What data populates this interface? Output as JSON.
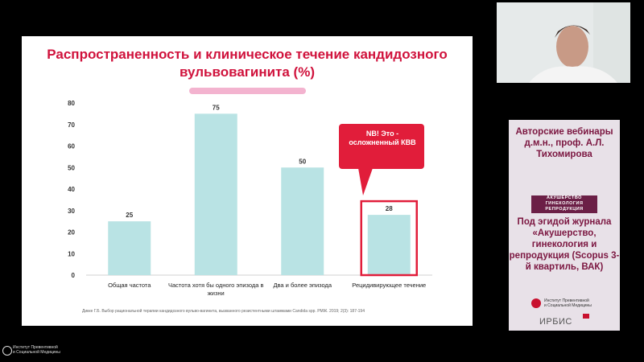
{
  "slide": {
    "title": "Распространенность и клиническое течение кандидозного вульвовагинита (%)",
    "source": "Дикке Г.Б. Выбор рациональной терапии кандидозного вульво-вагинита, вызванного резистентными штаммами Candida spp. РМЖ. 2019; 2(3): 187-194",
    "callout": "NB! Это - осложненный КВВ"
  },
  "chart_data": {
    "type": "bar",
    "categories": [
      "Общая частота",
      "Частота хотя бы одного эпизода в жизни",
      "Два и более эпизода",
      "Рецидивирующее течение"
    ],
    "values": [
      25,
      75,
      50,
      28
    ],
    "ylim": [
      0,
      80
    ],
    "yticks": [
      0,
      10,
      20,
      30,
      40,
      50,
      60,
      70,
      80
    ],
    "highlight_index": 3,
    "bar_color": "#b9e3e4",
    "highlight_color": "#e11d3a",
    "grid": false
  },
  "side_panel": {
    "header": "Авторские вебинары д.м.н., проф. А.Л. Тихомирова",
    "journal_logo": [
      "АКУШЕРСТВО",
      "ГИНЕКОЛОГИЯ",
      "РЕПРОДУКЦИЯ"
    ],
    "journal_text": "Под эгидой журнала «Акушерство, гинекология и репродукция (Scopus 3-й квартиль, ВАК)",
    "institute": [
      "Институт Превентивной",
      "и Социальной Медицины"
    ],
    "irbis": "ИРБИС"
  },
  "bottom_logo": [
    "Институт Превентивной",
    "и Социальной Медицины"
  ]
}
